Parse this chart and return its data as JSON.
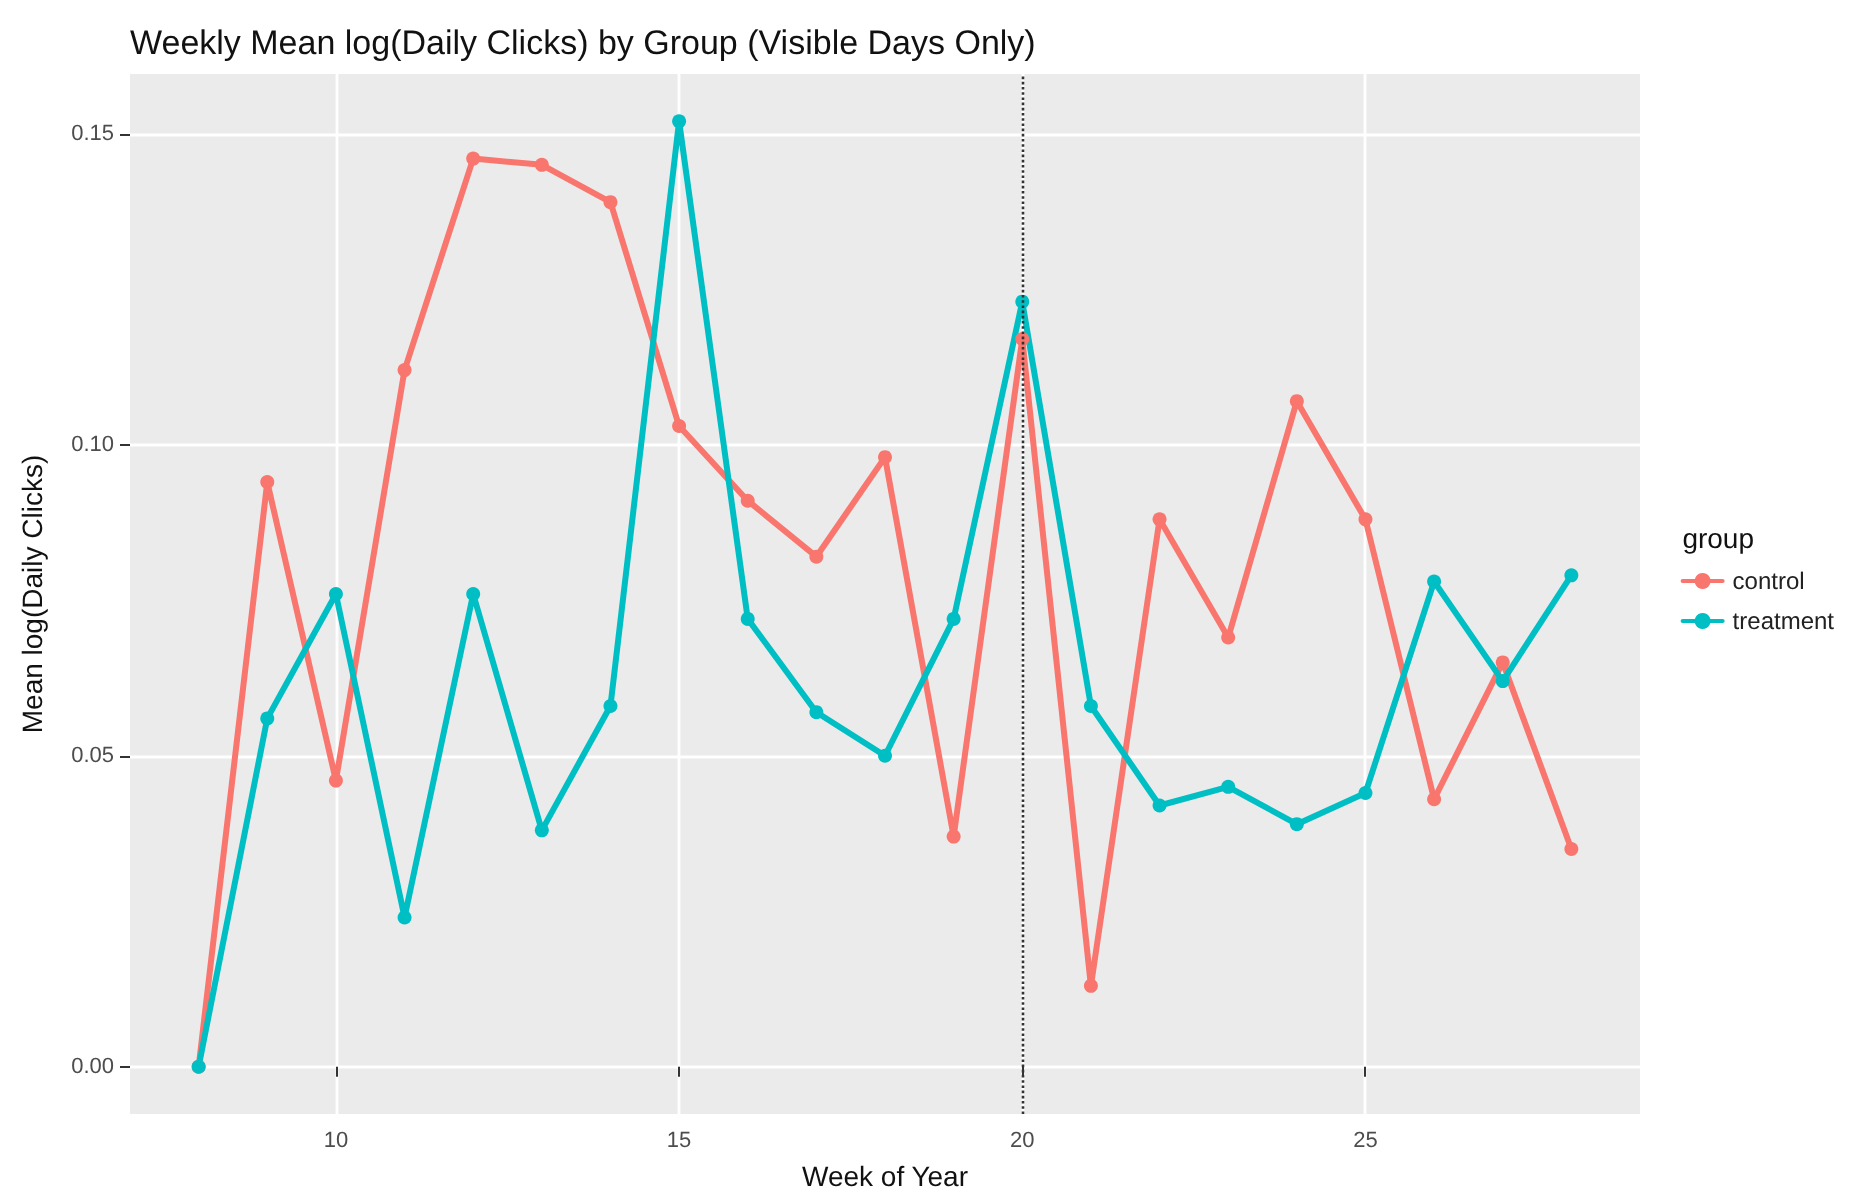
{
  "chart_data": {
    "type": "line",
    "title": "Weekly Mean log(Daily Clicks) by Group (Visible Days Only)",
    "xlabel": "Week of Year",
    "ylabel": "Mean log(Daily Clicks)",
    "legend_title": "group",
    "x": [
      8,
      9,
      10,
      11,
      12,
      13,
      14,
      15,
      16,
      17,
      18,
      19,
      20,
      21,
      22,
      23,
      24,
      25,
      26,
      27,
      28
    ],
    "series": [
      {
        "name": "control",
        "color": "#f8766d",
        "values": [
          0,
          0.094,
          0.046,
          0.112,
          0.146,
          0.145,
          0.139,
          0.103,
          0.091,
          0.082,
          0.098,
          0.037,
          0.117,
          0.013,
          0.088,
          0.069,
          0.107,
          0.088,
          0.043,
          0.065,
          0.035
        ]
      },
      {
        "name": "treatment",
        "color": "#00bfc4",
        "values": [
          0,
          0.056,
          0.076,
          0.024,
          0.076,
          0.038,
          0.058,
          0.152,
          0.072,
          0.057,
          0.05,
          0.072,
          0.123,
          0.058,
          0.042,
          0.045,
          0.039,
          0.044,
          0.078,
          0.062,
          0.079
        ]
      }
    ],
    "xlim": [
      7,
      29
    ],
    "xticks": [
      10,
      15,
      20,
      25
    ],
    "ylim": [
      -0.0076,
      0.1596
    ],
    "yticks": [
      {
        "value": 0,
        "label": "0.00"
      },
      {
        "value": 0.05,
        "label": "0.05"
      },
      {
        "value": 0.1,
        "label": "0.10"
      },
      {
        "value": 0.15,
        "label": "0.15"
      }
    ],
    "ref_lines": [
      {
        "axis": "x",
        "value": 20,
        "color": "#333333",
        "line_style": "dotted"
      }
    ],
    "grid": true,
    "legend": "right",
    "marker": "circle",
    "line_style": "solid"
  }
}
